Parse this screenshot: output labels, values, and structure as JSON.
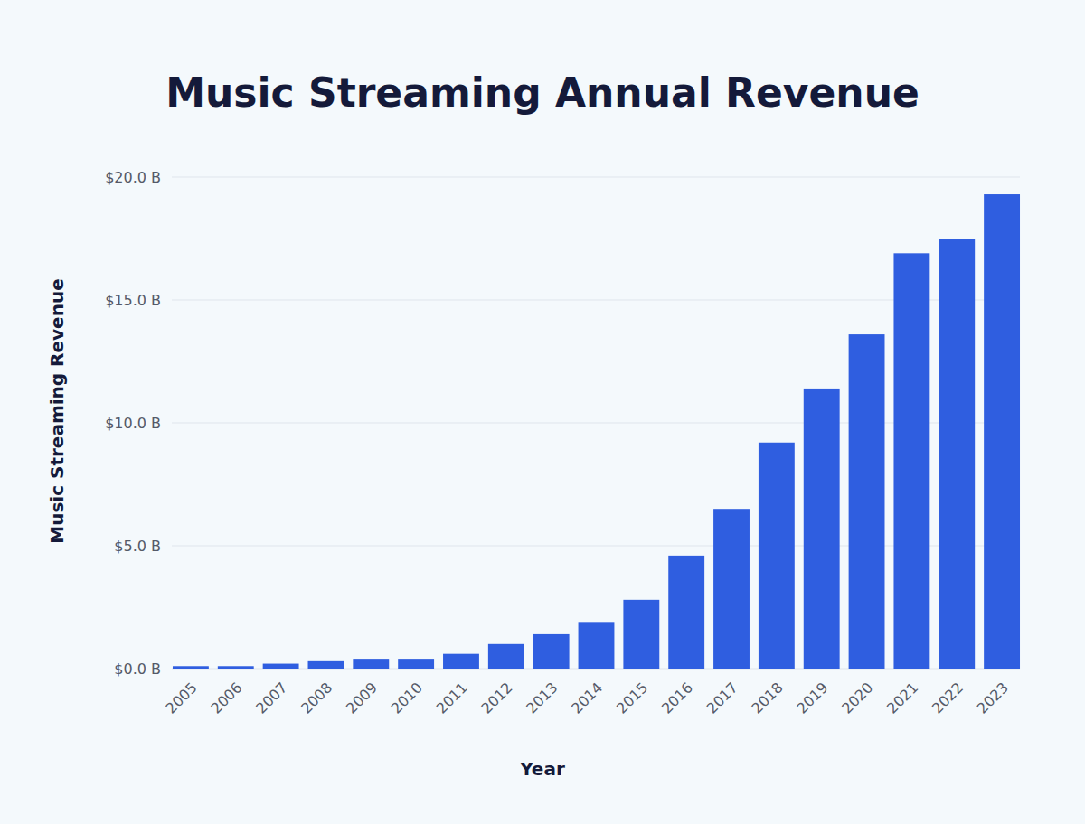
{
  "chart_data": {
    "type": "bar",
    "title": "Music Streaming Annual Revenue",
    "x_label": "Year",
    "y_label": "Music Streaming Revenue",
    "categories": [
      "2005",
      "2006",
      "2007",
      "2008",
      "2009",
      "2010",
      "2011",
      "2012",
      "2013",
      "2014",
      "2015",
      "2016",
      "2017",
      "2018",
      "2019",
      "2020",
      "2021",
      "2022",
      "2023"
    ],
    "values": [
      0.1,
      0.1,
      0.2,
      0.3,
      0.4,
      0.4,
      0.6,
      1.0,
      1.4,
      1.9,
      2.8,
      4.6,
      6.5,
      9.2,
      11.4,
      13.6,
      16.9,
      17.5,
      19.3
    ],
    "color": "#2f5ee0",
    "ylim": [
      0,
      20
    ],
    "yticks": [
      {
        "value": 0,
        "label": "$0.0 B"
      },
      {
        "value": 5,
        "label": "$5.0 B"
      },
      {
        "value": 10,
        "label": "$10.0 B"
      },
      {
        "value": 15,
        "label": "$15.0 B"
      },
      {
        "value": 20,
        "label": "$20.0 B"
      }
    ],
    "grid": true
  }
}
